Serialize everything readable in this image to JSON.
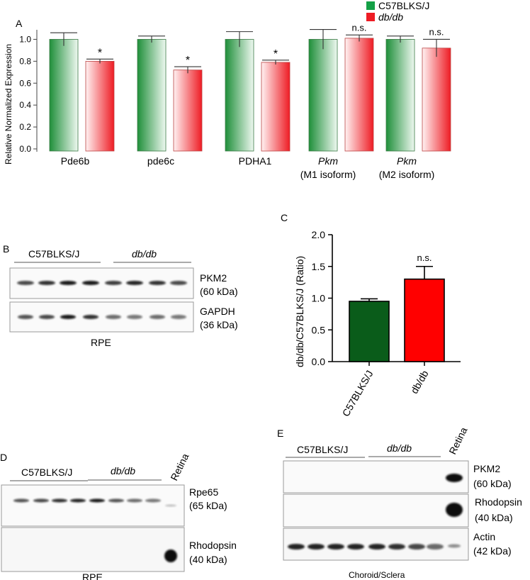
{
  "panels": {
    "A": "A",
    "B": "B",
    "C": "C",
    "D": "D",
    "E": "E"
  },
  "legend": {
    "items": [
      {
        "label": "C57BLKS/J",
        "color": "#14a046",
        "italic": false
      },
      {
        "label": "db/db",
        "color": "#ee1c24",
        "italic": true
      }
    ]
  },
  "colors": {
    "green_dark": "#1f8f3a",
    "green_light": "#e8f5ea",
    "red_dark": "#ee1c24",
    "red_light": "#fde6e6",
    "c_green": "#0a5c1a",
    "c_red": "#ff0000"
  },
  "chart_data": [
    {
      "id": "A",
      "type": "bar",
      "ylabel": "Relative Normalized Expression",
      "ylim": [
        0,
        1.1
      ],
      "yticks": [
        "0.0",
        "0.2",
        "0.4",
        "0.6",
        "0.8",
        "1.0"
      ],
      "categories": [
        {
          "line1": "Pde6b",
          "line2": "",
          "italic": false
        },
        {
          "line1": "pde6c",
          "line2": "",
          "italic": false
        },
        {
          "line1": "PDHA1",
          "line2": "",
          "italic": false
        },
        {
          "line1": "Pkm",
          "line2": "(M1 isoform)",
          "italic": true
        },
        {
          "line1": "Pkm",
          "line2": "(M2 isoform)",
          "italic": true
        }
      ],
      "series": [
        {
          "name": "C57BLKS/J",
          "values": [
            1.0,
            1.0,
            1.0,
            1.0,
            1.0
          ],
          "err": [
            0.06,
            0.03,
            0.07,
            0.09,
            0.03
          ]
        },
        {
          "name": "db/db",
          "values": [
            0.8,
            0.72,
            0.79,
            1.01,
            0.92
          ],
          "err": [
            0.02,
            0.03,
            0.02,
            0.03,
            0.08
          ]
        }
      ],
      "annotations": [
        "*",
        "*",
        "*",
        "n.s.",
        "n.s."
      ]
    },
    {
      "id": "C",
      "type": "bar",
      "ylabel": "db/db/C57BLKS/J (Ratio)",
      "ylim": [
        0,
        2.0
      ],
      "yticks": [
        "0.0",
        "0.5",
        "1.0",
        "1.5",
        "2.0"
      ],
      "categories": [
        "C57BLKS/J",
        "db/db"
      ],
      "values": [
        0.95,
        1.3
      ],
      "err": [
        0.04,
        0.2
      ],
      "annotations": [
        "",
        "n.s."
      ]
    }
  ],
  "blot_B": {
    "group1": "C57BLKS/J",
    "group2": "db/db",
    "rows": [
      {
        "name": "PKM2",
        "size": "(60 kDa)"
      },
      {
        "name": "GAPDH",
        "size": "(36 kDa)"
      }
    ],
    "caption": "RPE"
  },
  "blot_D": {
    "group1": "C57BLKS/J",
    "group2": "db/db",
    "extra_lane": "Retina",
    "rows": [
      {
        "name": "Rpe65",
        "size": "(65 kDa)"
      },
      {
        "name": "Rhodopsin",
        "size": "(40 kDa)"
      }
    ],
    "caption": "RPE"
  },
  "blot_E": {
    "group1": "C57BLKS/J",
    "group2": "db/db",
    "extra_lane": "Retina",
    "rows": [
      {
        "name": "PKM2",
        "size": "(60 kDa)"
      },
      {
        "name": "Rhodopsin",
        "size": "(40 kDa)"
      },
      {
        "name": "Actin",
        "size": "(42 kDa)"
      }
    ],
    "caption": "Choroid/Sclera"
  }
}
